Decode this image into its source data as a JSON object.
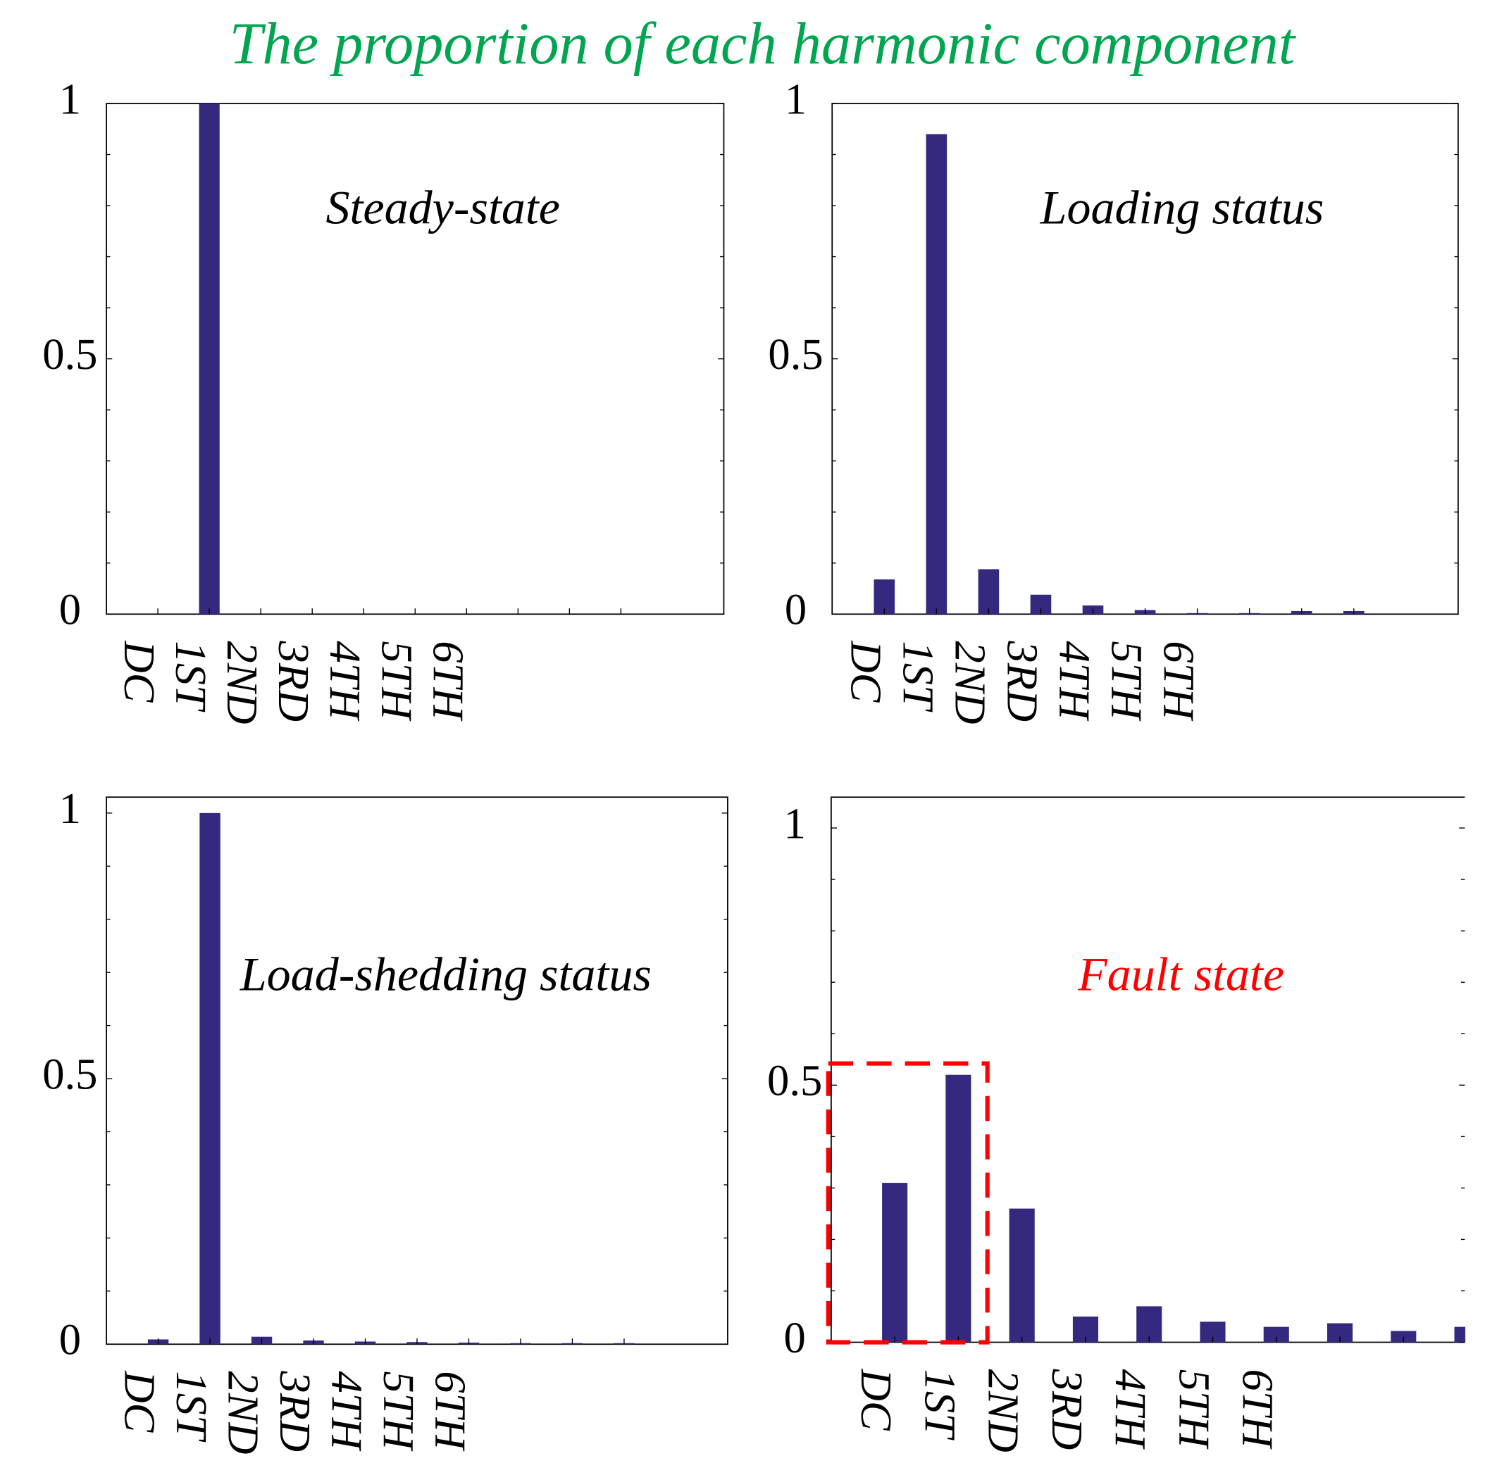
{
  "title": "The proportion of each harmonic component",
  "title_color": "#00a550",
  "chart_data": [
    {
      "type": "bar",
      "annotation": "Steady-state",
      "annotation_color": "#000000",
      "categories": [
        "DC",
        "1ST",
        "2ND",
        "3RD",
        "4TH",
        "5TH",
        "6TH",
        null,
        null,
        null
      ],
      "values": [
        0,
        1,
        0,
        0,
        0,
        0,
        0,
        0,
        0,
        0
      ],
      "color": "#332a80",
      "ylim": [
        0,
        1
      ],
      "yticks": [
        0,
        0.5,
        1
      ],
      "minor_yticks": [
        0.1,
        0.2,
        0.3,
        0.4,
        0.6,
        0.7,
        0.8,
        0.9
      ]
    },
    {
      "type": "bar",
      "annotation": "Loading status",
      "annotation_color": "#000000",
      "categories": [
        "DC",
        "1ST",
        "2ND",
        "3RD",
        "4TH",
        "5TH",
        "6TH",
        null,
        null,
        null
      ],
      "values": [
        0.068,
        0.94,
        0.088,
        0.038,
        0.017,
        0.008,
        0.002,
        0.002,
        0.006,
        0.006
      ],
      "color": "#332a80",
      "ylim": [
        0,
        1
      ],
      "yticks": [
        0,
        0.5,
        1
      ],
      "minor_yticks": [
        0.1,
        0.2,
        0.3,
        0.4,
        0.6,
        0.7,
        0.8,
        0.9
      ]
    },
    {
      "type": "bar",
      "annotation": "Load-shedding status",
      "annotation_color": "#000000",
      "categories": [
        "DC",
        "1ST",
        "2ND",
        "3RD",
        "4TH",
        "5TH",
        "6TH",
        null,
        null,
        null
      ],
      "values": [
        0.009,
        1.0,
        0.014,
        0.007,
        0.005,
        0.004,
        0.003,
        0.002,
        0.002,
        0.002
      ],
      "color": "#332a80",
      "ylim": [
        0,
        1.03
      ],
      "yticks": [
        0,
        0.5,
        1
      ],
      "minor_yticks": [
        0.1,
        0.2,
        0.3,
        0.4,
        0.6,
        0.7,
        0.8,
        0.9
      ]
    },
    {
      "type": "bar",
      "annotation": "Fault state",
      "annotation_color": "#ff0000",
      "categories": [
        "DC",
        "1ST",
        "2ND",
        "3RD",
        "4TH",
        "5TH",
        "6TH",
        null,
        null,
        null
      ],
      "values": [
        0.31,
        0.52,
        0.26,
        0.05,
        0.07,
        0.04,
        0.03,
        0.037,
        0.022,
        0.03
      ],
      "color": "#332a80",
      "ylim": [
        0,
        1.06
      ],
      "yticks": [
        0,
        0.5,
        1
      ],
      "minor_yticks": [
        0.1,
        0.2,
        0.3,
        0.4,
        0.6,
        0.7,
        0.8,
        0.9
      ]
    }
  ]
}
